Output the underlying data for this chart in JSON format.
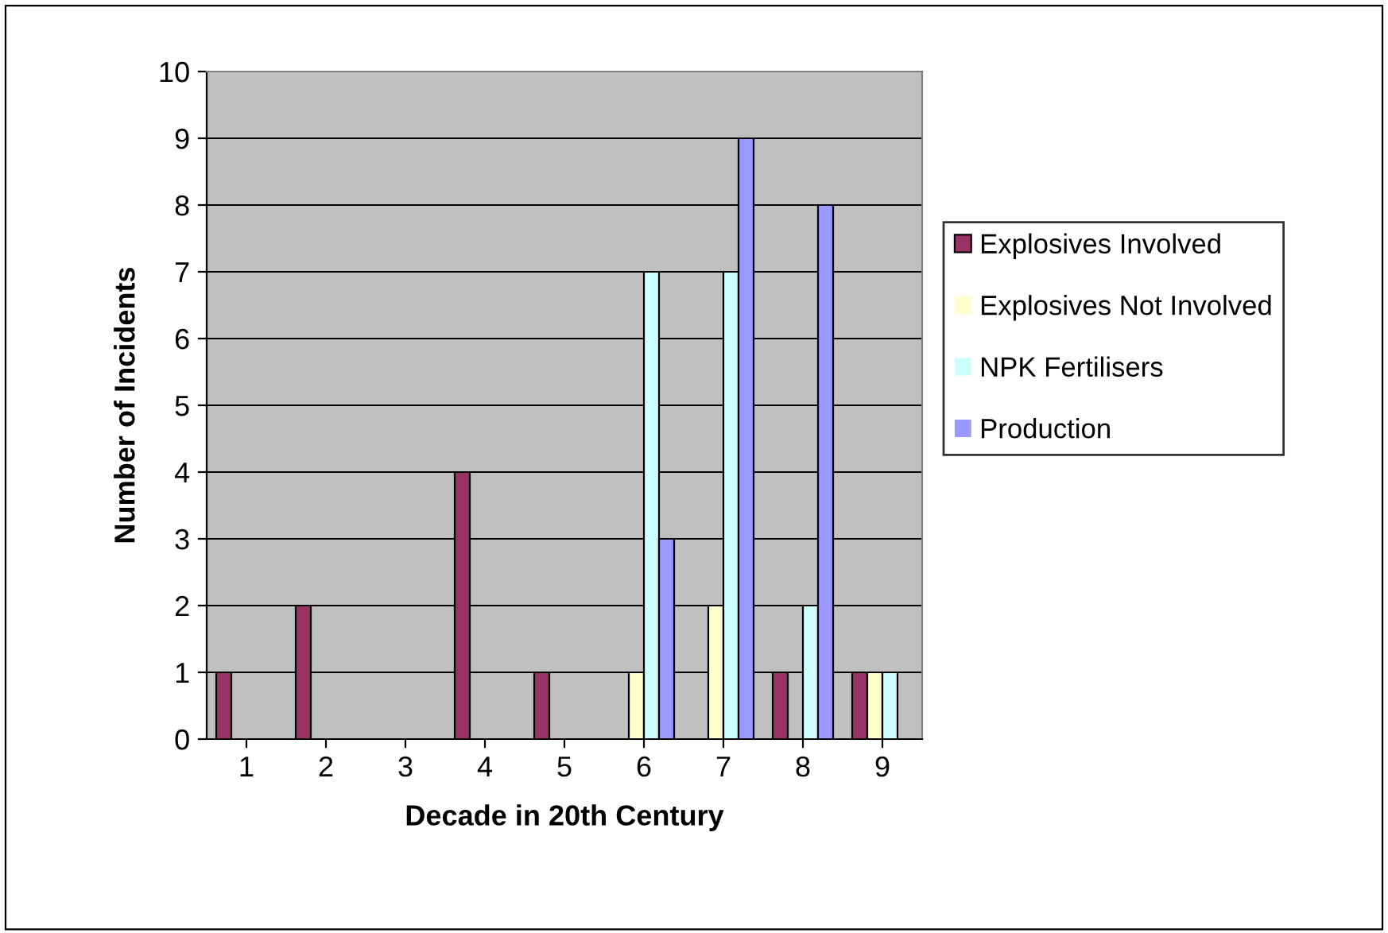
{
  "chart_data": {
    "type": "bar",
    "xlabel": "Decade in 20th Century",
    "ylabel": "Number of Incidents",
    "categories": [
      "1",
      "2",
      "3",
      "4",
      "5",
      "6",
      "7",
      "8",
      "9"
    ],
    "series": [
      {
        "name": "Explosives Involved",
        "color": "#993366",
        "values": [
          1,
          2,
          0,
          4,
          1,
          0,
          0,
          1,
          1
        ]
      },
      {
        "name": "Explosives Not Involved",
        "color": "#ffffcc",
        "values": [
          0,
          0,
          0,
          0,
          0,
          1,
          2,
          0,
          1
        ]
      },
      {
        "name": "NPK Fertilisers",
        "color": "#ccffff",
        "values": [
          0,
          0,
          0,
          0,
          0,
          7,
          7,
          2,
          1
        ]
      },
      {
        "name": "Production",
        "color": "#9999ff",
        "values": [
          0,
          0,
          0,
          0,
          0,
          3,
          9,
          8,
          0
        ]
      }
    ],
    "ylim": [
      0,
      10
    ],
    "yticks": [
      0,
      1,
      2,
      3,
      4,
      5,
      6,
      7,
      8,
      9,
      10
    ],
    "grid": "y",
    "legend": "right"
  }
}
